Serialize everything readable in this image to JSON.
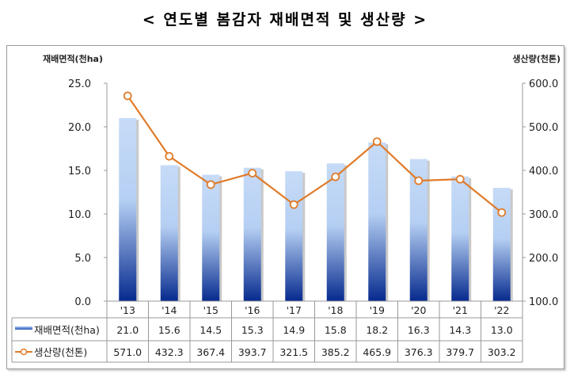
{
  "title": "< 연도별 봄감자 재배면적 및 생산량 >",
  "chart_data": {
    "type": "bar+line",
    "categories": [
      "'13",
      "'14",
      "'15",
      "'16",
      "'17",
      "'18",
      "'19",
      "'20",
      "'21",
      "'22"
    ],
    "series": [
      {
        "name": "재배면적(천ha)",
        "type": "bar",
        "axis": "left",
        "color": "#1f4fb0",
        "values": [
          21.0,
          15.6,
          14.5,
          15.3,
          14.9,
          15.8,
          18.2,
          16.3,
          14.3,
          13.0
        ],
        "labels": [
          "21.0",
          "15.6",
          "14.5",
          "15.3",
          "14.9",
          "15.8",
          "18.2",
          "16.3",
          "14.3",
          "13.0"
        ]
      },
      {
        "name": "생산량(천톤)",
        "type": "line",
        "axis": "right",
        "color": "#e07b2a",
        "values": [
          571.0,
          432.3,
          367.4,
          393.7,
          321.5,
          385.2,
          465.9,
          376.3,
          379.7,
          303.2
        ],
        "labels": [
          "571.0",
          "432.3",
          "367.4",
          "393.7",
          "321.5",
          "385.2",
          "465.9",
          "376.3",
          "379.7",
          "303.2"
        ]
      }
    ],
    "y_left": {
      "label": "재배면적(천ha)",
      "range": [
        0,
        25
      ],
      "ticks": [
        "0.0",
        "5.0",
        "10.0",
        "15.0",
        "20.0",
        "25.0"
      ]
    },
    "y_right": {
      "label": "생산량(천톤)",
      "range": [
        100,
        600
      ],
      "ticks": [
        "100.0",
        "200.0",
        "300.0",
        "400.0",
        "500.0",
        "600.0"
      ]
    },
    "data_table": true,
    "grid": false
  }
}
